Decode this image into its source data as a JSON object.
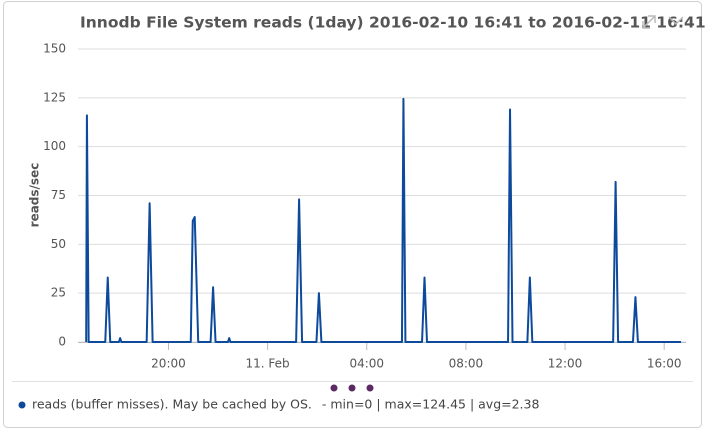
{
  "chart_data": {
    "type": "line",
    "title": "Innodb File System reads (1day) 2016-02-10 16:41 to 2016-02-11 16:41 ...",
    "y_label": "reads/sec",
    "x": [
      16.68,
      16.71,
      16.78,
      17.45,
      17.55,
      17.65,
      18.0,
      18.05,
      18.1,
      19.12,
      19.24,
      19.36,
      20.9,
      20.98,
      21.06,
      21.2,
      21.7,
      21.8,
      21.9,
      22.4,
      22.45,
      22.5,
      25.15,
      25.27,
      25.39,
      25.97,
      26.07,
      26.17,
      29.42,
      29.48,
      29.56,
      30.23,
      30.33,
      30.43,
      33.7,
      33.78,
      33.88,
      34.48,
      34.58,
      34.68,
      37.94,
      38.04,
      38.14,
      38.74,
      38.84,
      38.94,
      40.68
    ],
    "series": [
      {
        "name": "reads (buffer misses). May be cached by OS.",
        "color": "#0d4a9c",
        "values": [
          0,
          116,
          0,
          0,
          33,
          0,
          0,
          2,
          0,
          0,
          71,
          0,
          0,
          62,
          64,
          0,
          0,
          28,
          0,
          0,
          2,
          0,
          0,
          73,
          0,
          0,
          25,
          0,
          0,
          124.45,
          0,
          0,
          33,
          0,
          0,
          119,
          0,
          0,
          33,
          0,
          0,
          82,
          0,
          0,
          23,
          0,
          0
        ]
      }
    ],
    "legend_stats": "-  min=0 | max=124.45 | avg=2.38",
    "xlim": [
      16.35,
      40.88
    ],
    "xticks": [
      {
        "value": 20,
        "label": "20:00"
      },
      {
        "value": 24,
        "label": "11. Feb"
      },
      {
        "value": 28,
        "label": "04:00"
      },
      {
        "value": 32,
        "label": "08:00"
      },
      {
        "value": 36,
        "label": "12:00"
      },
      {
        "value": 40,
        "label": "16:00"
      }
    ],
    "ylim": [
      0,
      150
    ],
    "yticks": [
      0,
      25,
      50,
      75,
      100,
      125,
      150
    ],
    "grid": true
  }
}
